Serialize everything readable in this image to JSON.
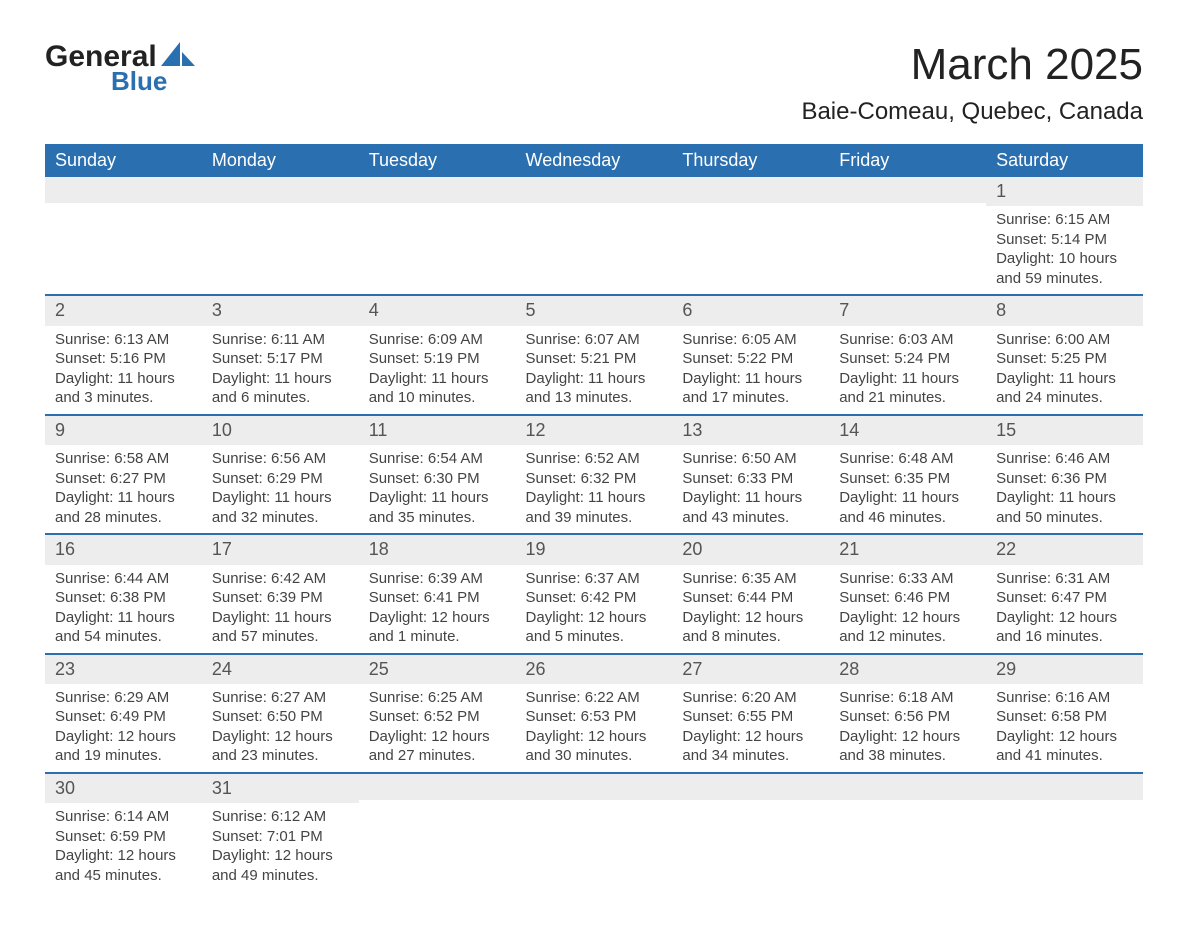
{
  "logo": {
    "text1": "General",
    "text2": "Blue",
    "shape_color": "#2a6fb0"
  },
  "title": "March 2025",
  "location": "Baie-Comeau, Quebec, Canada",
  "colors": {
    "header_bg": "#2a6fb0",
    "header_text": "#ffffff",
    "daynum_bg": "#ededed",
    "row_border": "#2a6fb0",
    "body_text": "#3a3a3a",
    "page_bg": "#ffffff"
  },
  "weekdays": [
    "Sunday",
    "Monday",
    "Tuesday",
    "Wednesday",
    "Thursday",
    "Friday",
    "Saturday"
  ],
  "weeks": [
    [
      null,
      null,
      null,
      null,
      null,
      null,
      {
        "n": "1",
        "sr": "Sunrise: 6:15 AM",
        "ss": "Sunset: 5:14 PM",
        "d1": "Daylight: 10 hours",
        "d2": "and 59 minutes."
      }
    ],
    [
      {
        "n": "2",
        "sr": "Sunrise: 6:13 AM",
        "ss": "Sunset: 5:16 PM",
        "d1": "Daylight: 11 hours",
        "d2": "and 3 minutes."
      },
      {
        "n": "3",
        "sr": "Sunrise: 6:11 AM",
        "ss": "Sunset: 5:17 PM",
        "d1": "Daylight: 11 hours",
        "d2": "and 6 minutes."
      },
      {
        "n": "4",
        "sr": "Sunrise: 6:09 AM",
        "ss": "Sunset: 5:19 PM",
        "d1": "Daylight: 11 hours",
        "d2": "and 10 minutes."
      },
      {
        "n": "5",
        "sr": "Sunrise: 6:07 AM",
        "ss": "Sunset: 5:21 PM",
        "d1": "Daylight: 11 hours",
        "d2": "and 13 minutes."
      },
      {
        "n": "6",
        "sr": "Sunrise: 6:05 AM",
        "ss": "Sunset: 5:22 PM",
        "d1": "Daylight: 11 hours",
        "d2": "and 17 minutes."
      },
      {
        "n": "7",
        "sr": "Sunrise: 6:03 AM",
        "ss": "Sunset: 5:24 PM",
        "d1": "Daylight: 11 hours",
        "d2": "and 21 minutes."
      },
      {
        "n": "8",
        "sr": "Sunrise: 6:00 AM",
        "ss": "Sunset: 5:25 PM",
        "d1": "Daylight: 11 hours",
        "d2": "and 24 minutes."
      }
    ],
    [
      {
        "n": "9",
        "sr": "Sunrise: 6:58 AM",
        "ss": "Sunset: 6:27 PM",
        "d1": "Daylight: 11 hours",
        "d2": "and 28 minutes."
      },
      {
        "n": "10",
        "sr": "Sunrise: 6:56 AM",
        "ss": "Sunset: 6:29 PM",
        "d1": "Daylight: 11 hours",
        "d2": "and 32 minutes."
      },
      {
        "n": "11",
        "sr": "Sunrise: 6:54 AM",
        "ss": "Sunset: 6:30 PM",
        "d1": "Daylight: 11 hours",
        "d2": "and 35 minutes."
      },
      {
        "n": "12",
        "sr": "Sunrise: 6:52 AM",
        "ss": "Sunset: 6:32 PM",
        "d1": "Daylight: 11 hours",
        "d2": "and 39 minutes."
      },
      {
        "n": "13",
        "sr": "Sunrise: 6:50 AM",
        "ss": "Sunset: 6:33 PM",
        "d1": "Daylight: 11 hours",
        "d2": "and 43 minutes."
      },
      {
        "n": "14",
        "sr": "Sunrise: 6:48 AM",
        "ss": "Sunset: 6:35 PM",
        "d1": "Daylight: 11 hours",
        "d2": "and 46 minutes."
      },
      {
        "n": "15",
        "sr": "Sunrise: 6:46 AM",
        "ss": "Sunset: 6:36 PM",
        "d1": "Daylight: 11 hours",
        "d2": "and 50 minutes."
      }
    ],
    [
      {
        "n": "16",
        "sr": "Sunrise: 6:44 AM",
        "ss": "Sunset: 6:38 PM",
        "d1": "Daylight: 11 hours",
        "d2": "and 54 minutes."
      },
      {
        "n": "17",
        "sr": "Sunrise: 6:42 AM",
        "ss": "Sunset: 6:39 PM",
        "d1": "Daylight: 11 hours",
        "d2": "and 57 minutes."
      },
      {
        "n": "18",
        "sr": "Sunrise: 6:39 AM",
        "ss": "Sunset: 6:41 PM",
        "d1": "Daylight: 12 hours",
        "d2": "and 1 minute."
      },
      {
        "n": "19",
        "sr": "Sunrise: 6:37 AM",
        "ss": "Sunset: 6:42 PM",
        "d1": "Daylight: 12 hours",
        "d2": "and 5 minutes."
      },
      {
        "n": "20",
        "sr": "Sunrise: 6:35 AM",
        "ss": "Sunset: 6:44 PM",
        "d1": "Daylight: 12 hours",
        "d2": "and 8 minutes."
      },
      {
        "n": "21",
        "sr": "Sunrise: 6:33 AM",
        "ss": "Sunset: 6:46 PM",
        "d1": "Daylight: 12 hours",
        "d2": "and 12 minutes."
      },
      {
        "n": "22",
        "sr": "Sunrise: 6:31 AM",
        "ss": "Sunset: 6:47 PM",
        "d1": "Daylight: 12 hours",
        "d2": "and 16 minutes."
      }
    ],
    [
      {
        "n": "23",
        "sr": "Sunrise: 6:29 AM",
        "ss": "Sunset: 6:49 PM",
        "d1": "Daylight: 12 hours",
        "d2": "and 19 minutes."
      },
      {
        "n": "24",
        "sr": "Sunrise: 6:27 AM",
        "ss": "Sunset: 6:50 PM",
        "d1": "Daylight: 12 hours",
        "d2": "and 23 minutes."
      },
      {
        "n": "25",
        "sr": "Sunrise: 6:25 AM",
        "ss": "Sunset: 6:52 PM",
        "d1": "Daylight: 12 hours",
        "d2": "and 27 minutes."
      },
      {
        "n": "26",
        "sr": "Sunrise: 6:22 AM",
        "ss": "Sunset: 6:53 PM",
        "d1": "Daylight: 12 hours",
        "d2": "and 30 minutes."
      },
      {
        "n": "27",
        "sr": "Sunrise: 6:20 AM",
        "ss": "Sunset: 6:55 PM",
        "d1": "Daylight: 12 hours",
        "d2": "and 34 minutes."
      },
      {
        "n": "28",
        "sr": "Sunrise: 6:18 AM",
        "ss": "Sunset: 6:56 PM",
        "d1": "Daylight: 12 hours",
        "d2": "and 38 minutes."
      },
      {
        "n": "29",
        "sr": "Sunrise: 6:16 AM",
        "ss": "Sunset: 6:58 PM",
        "d1": "Daylight: 12 hours",
        "d2": "and 41 minutes."
      }
    ],
    [
      {
        "n": "30",
        "sr": "Sunrise: 6:14 AM",
        "ss": "Sunset: 6:59 PM",
        "d1": "Daylight: 12 hours",
        "d2": "and 45 minutes."
      },
      {
        "n": "31",
        "sr": "Sunrise: 6:12 AM",
        "ss": "Sunset: 7:01 PM",
        "d1": "Daylight: 12 hours",
        "d2": "and 49 minutes."
      },
      null,
      null,
      null,
      null,
      null
    ]
  ]
}
